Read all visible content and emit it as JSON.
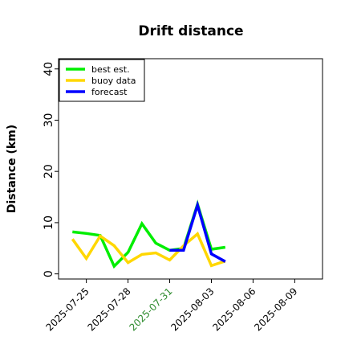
{
  "chart_data": {
    "type": "line",
    "title": "Drift distance",
    "xlabel": "",
    "ylabel": "Distance (km)",
    "ylim": [
      -1,
      42
    ],
    "xlim": [
      "2025-07-23",
      "2025-08-11"
    ],
    "xticks": [
      {
        "label": "2025-07-25",
        "date": "2025-07-25",
        "color": "#000000"
      },
      {
        "label": "2025-07-28",
        "date": "2025-07-28",
        "color": "#000000"
      },
      {
        "label": "2025-07-31",
        "date": "2025-07-31",
        "color": "#2e8b2e"
      },
      {
        "label": "2025-08-03",
        "date": "2025-08-03",
        "color": "#000000"
      },
      {
        "label": "2025-08-06",
        "date": "2025-08-06",
        "color": "#000000"
      },
      {
        "label": "2025-08-09",
        "date": "2025-08-09",
        "color": "#000000"
      }
    ],
    "yticks": [
      0,
      10,
      20,
      30,
      40
    ],
    "grid": false,
    "legend_position": "top-left",
    "series": [
      {
        "name": "best est.",
        "color": "#00ee00",
        "points": [
          {
            "x": "2025-07-24",
            "y": 8.2
          },
          {
            "x": "2025-07-25",
            "y": 7.9
          },
          {
            "x": "2025-07-26",
            "y": 7.5
          },
          {
            "x": "2025-07-27",
            "y": 1.5
          },
          {
            "x": "2025-07-28",
            "y": 4.2
          },
          {
            "x": "2025-07-29",
            "y": 9.8
          },
          {
            "x": "2025-07-30",
            "y": 6.0
          },
          {
            "x": "2025-07-31",
            "y": 4.6
          },
          {
            "x": "2025-08-01",
            "y": 5.0
          },
          {
            "x": "2025-08-02",
            "y": 13.6
          },
          {
            "x": "2025-08-03",
            "y": 4.8
          },
          {
            "x": "2025-08-04",
            "y": 5.2
          }
        ]
      },
      {
        "name": "buoy data",
        "color": "#ffd700",
        "points": [
          {
            "x": "2025-07-24",
            "y": 6.8
          },
          {
            "x": "2025-07-25",
            "y": 3.0
          },
          {
            "x": "2025-07-26",
            "y": 7.4
          },
          {
            "x": "2025-07-27",
            "y": 5.5
          },
          {
            "x": "2025-07-28",
            "y": 2.2
          },
          {
            "x": "2025-07-29",
            "y": 3.8
          },
          {
            "x": "2025-07-30",
            "y": 4.1
          },
          {
            "x": "2025-07-31",
            "y": 2.7
          },
          {
            "x": "2025-08-01",
            "y": 5.5
          },
          {
            "x": "2025-08-02",
            "y": 7.8
          },
          {
            "x": "2025-08-03",
            "y": 1.6
          },
          {
            "x": "2025-08-04",
            "y": 2.5
          }
        ]
      },
      {
        "name": "forecast",
        "color": "#0000ff",
        "points": [
          {
            "x": "2025-07-31",
            "y": 4.6
          },
          {
            "x": "2025-08-01",
            "y": 4.6
          },
          {
            "x": "2025-08-02",
            "y": 13.4
          },
          {
            "x": "2025-08-03",
            "y": 3.9
          },
          {
            "x": "2025-08-04",
            "y": 2.4
          }
        ]
      }
    ]
  }
}
